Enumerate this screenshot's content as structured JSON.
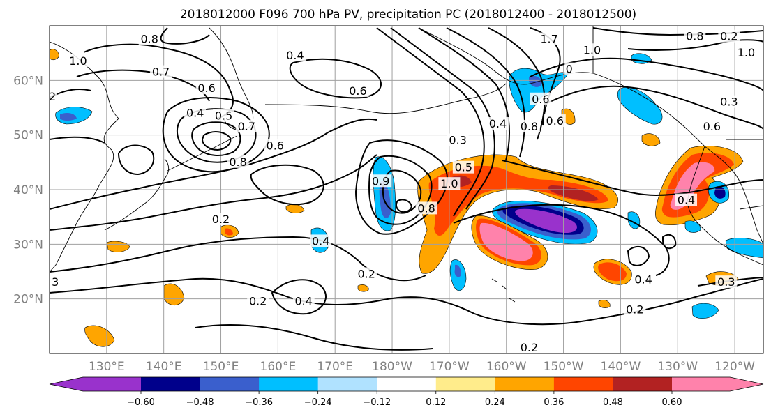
{
  "title": "2018012000 F096 700 hPa PV, precipitation PC (2018012400 - 2018012500)",
  "chart_data": {
    "type": "heatmap",
    "title": "2018012000 F096 700 hPa PV, precipitation PC (2018012400 - 2018012500)",
    "xlabel": "",
    "ylabel": "",
    "x_range_lon_east": [
      120,
      245
    ],
    "y_range_lat": [
      10,
      70
    ],
    "x_ticks": [
      "130°E",
      "140°E",
      "150°E",
      "160°E",
      "170°E",
      "180°W",
      "170°W",
      "160°W",
      "150°W",
      "140°W",
      "130°W",
      "120°W"
    ],
    "x_tick_values": [
      130,
      140,
      150,
      160,
      170,
      180,
      190,
      200,
      210,
      220,
      230,
      240
    ],
    "y_ticks": [
      "20°N",
      "30°N",
      "40°N",
      "50°N",
      "60°N"
    ],
    "y_tick_values": [
      20,
      30,
      40,
      50,
      60
    ],
    "grid": true,
    "colorbar": {
      "orientation": "horizontal",
      "extend": "both",
      "levels": [
        -0.6,
        -0.48,
        -0.36,
        -0.24,
        -0.12,
        0.12,
        0.24,
        0.36,
        0.48,
        0.6
      ],
      "tick_labels": [
        "−0.60",
        "−0.48",
        "−0.36",
        "−0.24",
        "−0.12",
        "0.12",
        "0.24",
        "0.36",
        "0.48",
        "0.60"
      ],
      "colors": [
        "#9932cc",
        "#00008b",
        "#3a5fcd",
        "#00bfff",
        "#b0e2ff",
        "#ffffff",
        "#ffec8b",
        "#ffa500",
        "#ff4500",
        "#b22222",
        "#ff82ab"
      ]
    },
    "contour_labels": [
      {
        "text": "0.8",
        "lon": 137.5,
        "lat": 67.5
      },
      {
        "text": "0.7",
        "lon": 139.5,
        "lat": 61.5
      },
      {
        "text": "0.6",
        "lon": 147.5,
        "lat": 58.5
      },
      {
        "text": "0.4",
        "lon": 163,
        "lat": 64.5
      },
      {
        "text": "0.6",
        "lon": 174,
        "lat": 58
      },
      {
        "text": "0.4",
        "lon": 145.5,
        "lat": 54
      },
      {
        "text": "0.5",
        "lon": 150.5,
        "lat": 53.5
      },
      {
        "text": "0.7",
        "lon": 154.5,
        "lat": 51.5
      },
      {
        "text": "0.6",
        "lon": 159.5,
        "lat": 48
      },
      {
        "text": "0.8",
        "lon": 153,
        "lat": 45
      },
      {
        "text": "0.2",
        "lon": 150,
        "lat": 34.5
      },
      {
        "text": "0.2",
        "lon": 175.5,
        "lat": 24.5
      },
      {
        "text": "0.4",
        "lon": 167.5,
        "lat": 30.5
      },
      {
        "text": "0.2",
        "lon": 156.5,
        "lat": 19.5
      },
      {
        "text": "0.4",
        "lon": 164.5,
        "lat": 19.5
      },
      {
        "text": "0.3",
        "lon": 191.5,
        "lat": 49
      },
      {
        "text": "0.5",
        "lon": 192.5,
        "lat": 44
      },
      {
        "text": "0.4",
        "lon": 198.5,
        "lat": 52
      },
      {
        "text": "0.9",
        "lon": 178,
        "lat": 41.5
      },
      {
        "text": "1.0",
        "lon": 190,
        "lat": 41
      },
      {
        "text": "0.8",
        "lon": 186,
        "lat": 36.5
      },
      {
        "text": "0.8",
        "lon": 204,
        "lat": 51.5
      },
      {
        "text": "0.6",
        "lon": 208.5,
        "lat": 52.5
      },
      {
        "text": "0.6",
        "lon": 206,
        "lat": 56.5
      },
      {
        "text": "1.0",
        "lon": 215,
        "lat": 65.5
      },
      {
        "text": "1.7",
        "lon": 207.5,
        "lat": 67.5
      },
      {
        "text": "0.8",
        "lon": 233,
        "lat": 68
      },
      {
        "text": "0.2",
        "lon": 239,
        "lat": 68
      },
      {
        "text": "1.0",
        "lon": 242,
        "lat": 65
      },
      {
        "text": "0.3",
        "lon": 239,
        "lat": 56
      },
      {
        "text": "0.6",
        "lon": 236,
        "lat": 51.5
      },
      {
        "text": "0.4",
        "lon": 231.5,
        "lat": 38
      },
      {
        "text": "0.4",
        "lon": 224,
        "lat": 23.5
      },
      {
        "text": "0.3",
        "lon": 238.5,
        "lat": 23
      },
      {
        "text": "0.2",
        "lon": 222.5,
        "lat": 18
      },
      {
        "text": "0.2",
        "lon": 204,
        "lat": 11
      },
      {
        "text": "1.0",
        "lon": 125,
        "lat": 63.5
      },
      {
        "text": "2",
        "lon": 120.5,
        "lat": 57
      },
      {
        "text": "3",
        "lon": 121,
        "lat": 23
      },
      {
        "text": "0",
        "lon": 211,
        "lat": 62
      }
    ]
  }
}
